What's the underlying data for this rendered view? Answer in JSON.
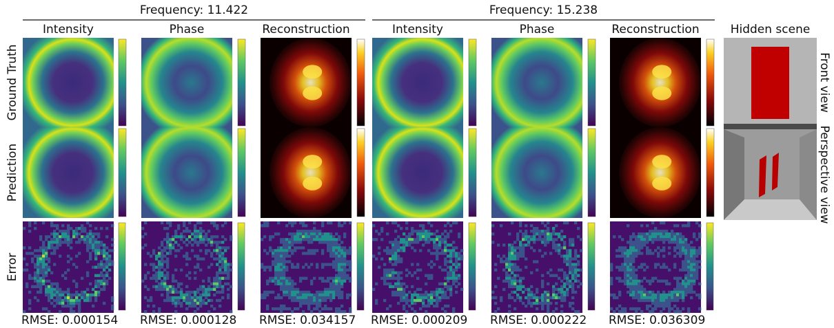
{
  "groups": [
    {
      "title": "Frequency: 11.422",
      "columns": [
        "Intensity",
        "Phase",
        "Reconstruction"
      ],
      "rmse": [
        "RMSE: 0.000154",
        "RMSE: 0.000128",
        "RMSE: 0.034157"
      ]
    },
    {
      "title": "Frequency: 15.238",
      "columns": [
        "Intensity",
        "Phase",
        "Reconstruction"
      ],
      "rmse": [
        "RMSE: 0.000209",
        "RMSE: 0.000222",
        "RMSE: 0.036309"
      ]
    }
  ],
  "row_labels": [
    "Ground Truth",
    "Prediction",
    "Error"
  ],
  "hidden_scene": {
    "title": "Hidden scene",
    "views": [
      "Front view",
      "Perspective view"
    ]
  }
}
